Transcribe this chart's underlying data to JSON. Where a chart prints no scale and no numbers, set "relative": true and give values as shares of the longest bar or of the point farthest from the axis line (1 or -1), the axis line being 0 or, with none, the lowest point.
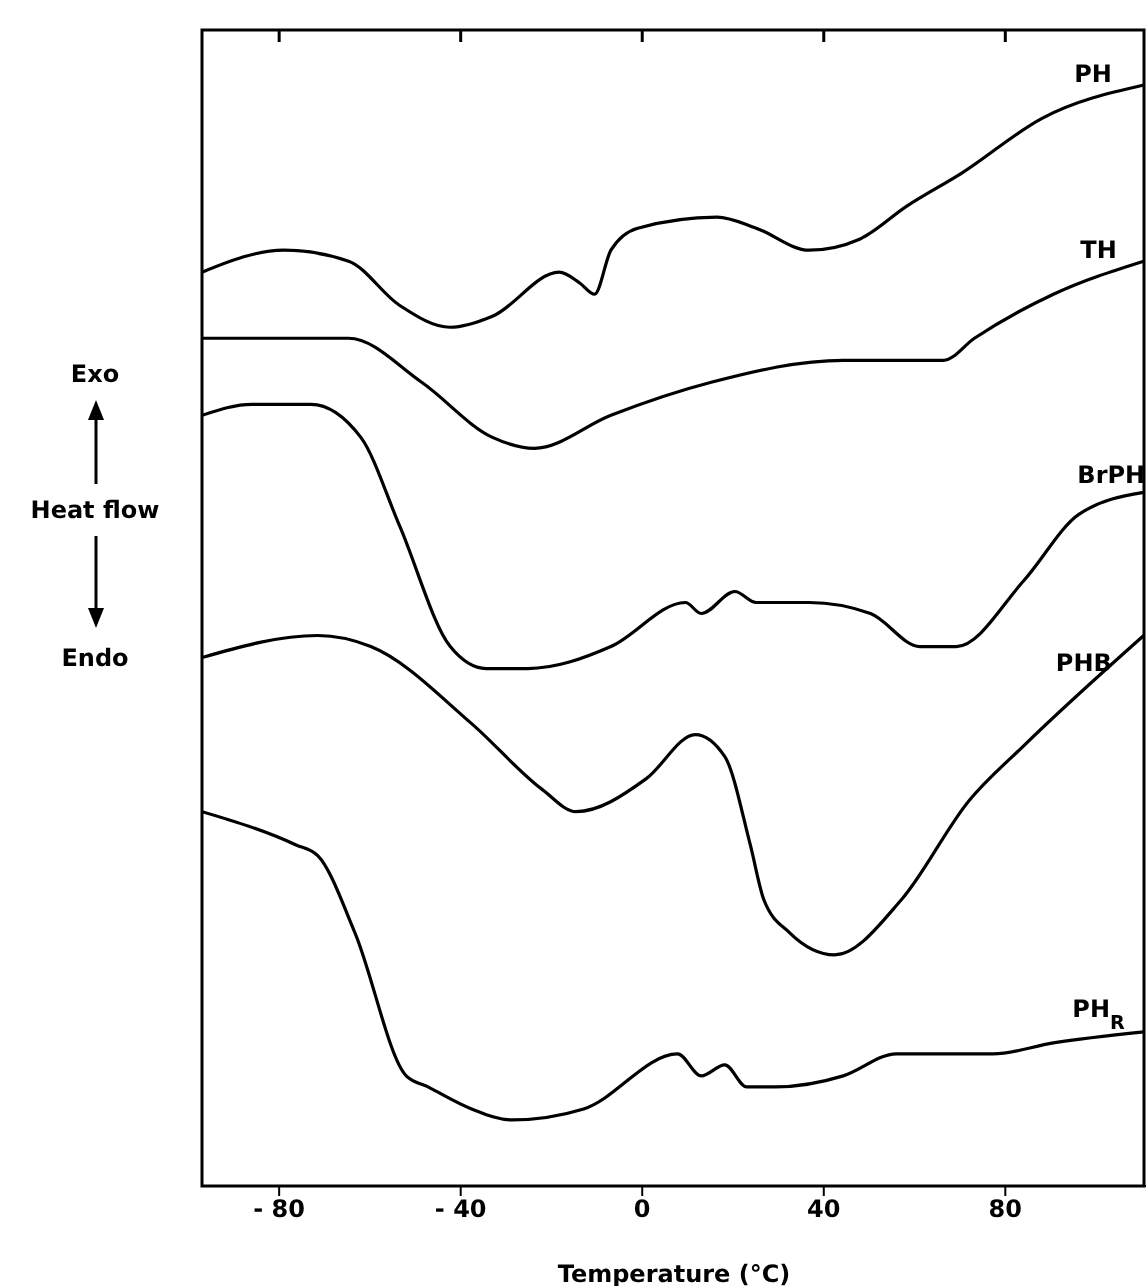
{
  "chart_data": {
    "type": "line",
    "relative": true,
    "xlabel": "Temperature (°C)",
    "ylabel": "Heat flow",
    "annotations": [
      "Exo",
      "Endo"
    ],
    "xlim": [
      -97,
      111
    ],
    "xticks": [
      -80,
      -40,
      0,
      40,
      80
    ],
    "grid": false,
    "legend": false,
    "marker": "none",
    "line_style": "solid",
    "series": [
      {
        "name": "PH",
        "color": "#000000",
        "x": [
          -97,
          -79,
          -64.7,
          -53.5,
          -42.3,
          -33,
          -18.3,
          -13.7,
          -10.5,
          -6.9,
          -1,
          16.5,
          25.1,
          36.8,
          47.9,
          58.3,
          70.4,
          88.2,
          110.5
        ],
        "values": [
          0.83,
          0.85,
          0.84,
          0.8,
          0.78,
          0.79,
          0.83,
          0.82,
          0.81,
          0.85,
          0.87,
          0.88,
          0.87,
          0.85,
          0.86,
          0.89,
          0.92,
          0.97,
          1.0
        ]
      },
      {
        "name": "TH",
        "color": "#000000",
        "x": [
          -97,
          -78,
          -64.7,
          -48.6,
          -33,
          -23.8,
          -6.9,
          15.2,
          44.3,
          66.4,
          73.2,
          90.6,
          110.5
        ],
        "values": [
          0.77,
          0.77,
          0.77,
          0.73,
          0.68,
          0.67,
          0.7,
          0.73,
          0.75,
          0.75,
          0.77,
          0.81,
          0.84
        ]
      },
      {
        "name": "BrPH",
        "color": "#000000",
        "x": [
          -97,
          -86,
          -73,
          -62,
          -53.5,
          -42.3,
          -34.4,
          -25.2,
          -6.9,
          9.5,
          13,
          20.4,
          25.1,
          36.8,
          50.3,
          61.2,
          69.2,
          84.1,
          96.2,
          110.5
        ],
        "values": [
          0.7,
          0.71,
          0.71,
          0.68,
          0.6,
          0.49,
          0.47,
          0.47,
          0.49,
          0.53,
          0.52,
          0.54,
          0.53,
          0.53,
          0.52,
          0.49,
          0.49,
          0.55,
          0.61,
          0.63
        ]
      },
      {
        "name": "PHB",
        "color": "#000000",
        "x": [
          -97,
          -71.5,
          -59.8,
          -37.6,
          -22,
          -14.6,
          0.9,
          11.7,
          18.2,
          23.8,
          26.8,
          32.5,
          42.4,
          57.1,
          72,
          84.1,
          110.5
        ],
        "values": [
          0.48,
          0.5,
          0.49,
          0.42,
          0.36,
          0.34,
          0.37,
          0.41,
          0.39,
          0.31,
          0.26,
          0.23,
          0.21,
          0.26,
          0.35,
          0.4,
          0.5
        ]
      },
      {
        "name": "PH$_{R}$",
        "color": "#000000",
        "x": [
          -97,
          -76.4,
          -71.5,
          -63.3,
          -52,
          -47.2,
          -37.6,
          -28.8,
          -12.9,
          7.8,
          13,
          18.2,
          23,
          29.4,
          44.3,
          56,
          77.3,
          90.6,
          110.5
        ],
        "values": [
          0.34,
          0.31,
          0.3,
          0.23,
          0.1,
          0.09,
          0.07,
          0.06,
          0.07,
          0.12,
          0.1,
          0.11,
          0.09,
          0.09,
          0.1,
          0.12,
          0.12,
          0.13,
          0.14
        ]
      }
    ]
  }
}
